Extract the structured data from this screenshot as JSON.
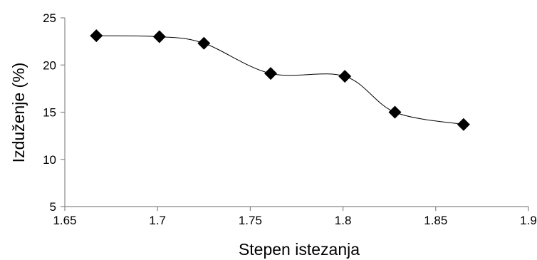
{
  "chart_data": {
    "type": "line",
    "title": "",
    "xlabel": "Stepen istezanja",
    "ylabel": "Izduženje (%)",
    "xlim": [
      1.65,
      1.9
    ],
    "ylim": [
      5,
      25
    ],
    "x_ticks": [
      1.65,
      1.7,
      1.75,
      1.8,
      1.85,
      1.9
    ],
    "x_tick_labels": [
      "1.65",
      "1.7",
      "1.75",
      "1.8",
      "1.85",
      "1.9"
    ],
    "y_ticks": [
      5,
      10,
      15,
      20,
      25
    ],
    "y_tick_labels": [
      "5",
      "10",
      "15",
      "20",
      "25"
    ],
    "grid": false,
    "legend": "none",
    "series": [
      {
        "marker": "diamond",
        "color": "#000000",
        "x": [
          1.667,
          1.701,
          1.725,
          1.761,
          1.801,
          1.828,
          1.865
        ],
        "y": [
          23.1,
          23.0,
          22.3,
          19.1,
          18.8,
          15.0,
          13.7
        ]
      }
    ]
  }
}
